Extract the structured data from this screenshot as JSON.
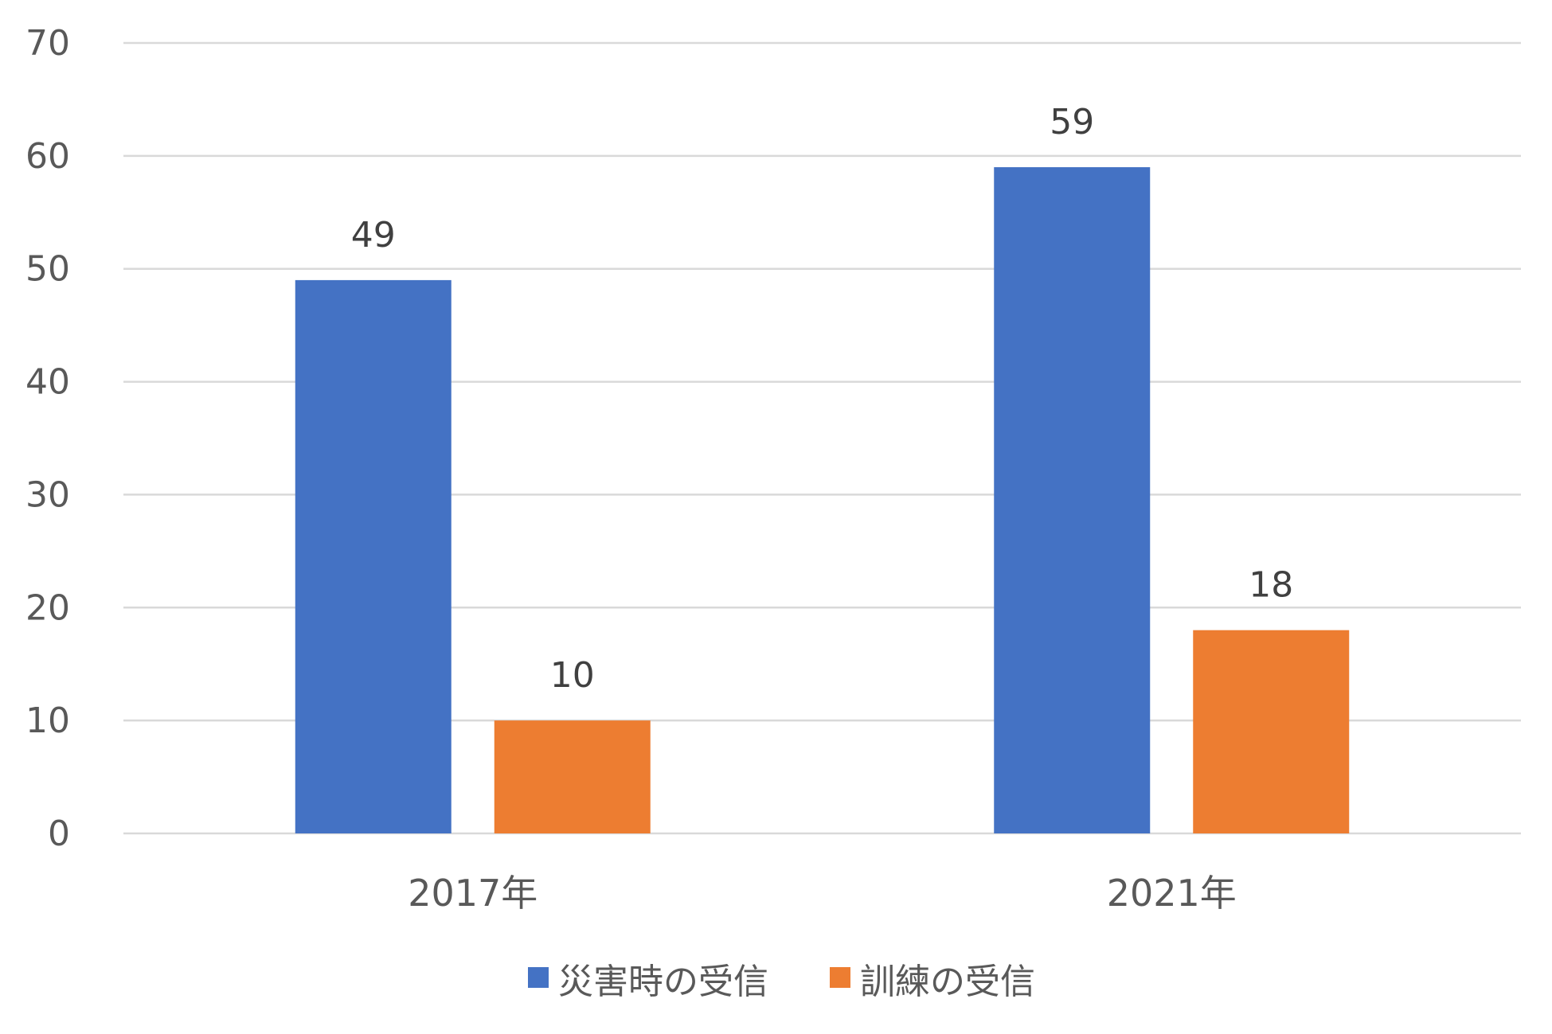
{
  "chart_data": {
    "type": "bar",
    "title": "",
    "xlabel": "",
    "ylabel": "",
    "categories": [
      "2017年",
      "2021年"
    ],
    "series": [
      {
        "name": "災害時の受信",
        "values": [
          49,
          59
        ],
        "color": "#4472c4"
      },
      {
        "name": "訓練の受信",
        "values": [
          10,
          18
        ],
        "color": "#ed7d31"
      }
    ],
    "ylim": [
      0,
      70
    ],
    "yticks": [
      0,
      10,
      20,
      30,
      40,
      50,
      60,
      70
    ],
    "grid": true,
    "legend_position": "bottom",
    "data_labels": true
  }
}
